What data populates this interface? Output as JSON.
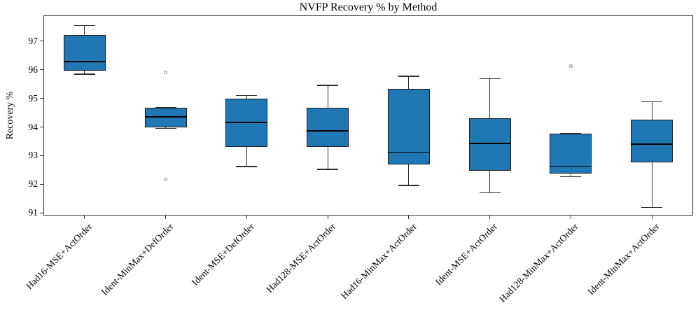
{
  "figure": {
    "background": "#ffffff"
  },
  "chart_data": {
    "type": "boxplot",
    "title": "NVFP Recovery % by Method",
    "ylabel": "Recovery %",
    "xlabel": "",
    "ylim": [
      90.93,
      97.88
    ],
    "yticks": [
      91,
      92,
      93,
      94,
      95,
      96,
      97
    ],
    "grid": false,
    "legend": null,
    "categories": [
      "Had16-MSE+ActOrder",
      "Ident-MinMax+DefOrder",
      "Ident-MSE+DefOrder",
      "Had128-MSE+ActOrder",
      "Had16-MinMax+ActOrder",
      "Ident-MSE+ActOrder",
      "Had128-MinMax+ActOrder",
      "Ident-MinMax+ActOrder"
    ],
    "series": [
      {
        "label": "Had16-MSE+ActOrder",
        "whislo": 95.85,
        "q1": 95.97,
        "med": 96.29,
        "q3": 97.23,
        "whishi": 97.55,
        "fliers": []
      },
      {
        "label": "Ident-MinMax+DefOrder",
        "whislo": 93.95,
        "q1": 93.98,
        "med": 94.35,
        "q3": 94.67,
        "whishi": 94.67,
        "fliers": [
          95.9,
          92.17
        ]
      },
      {
        "label": "Ident-MSE+DefOrder",
        "whislo": 92.62,
        "q1": 93.3,
        "med": 94.16,
        "q3": 94.99,
        "whishi": 95.1,
        "fliers": []
      },
      {
        "label": "Had128-MSE+ActOrder",
        "whislo": 92.52,
        "q1": 93.31,
        "med": 93.86,
        "q3": 94.67,
        "whishi": 95.46,
        "fliers": []
      },
      {
        "label": "Had16-MinMax+ActOrder",
        "whislo": 91.96,
        "q1": 92.7,
        "med": 93.12,
        "q3": 95.34,
        "whishi": 95.78,
        "fliers": []
      },
      {
        "label": "Ident-MSE+ActOrder",
        "whislo": 91.7,
        "q1": 92.47,
        "med": 93.42,
        "q3": 94.3,
        "whishi": 95.69,
        "fliers": []
      },
      {
        "label": "Had128-MinMax+ActOrder",
        "whislo": 92.26,
        "q1": 92.37,
        "med": 92.63,
        "q3": 93.77,
        "whishi": 93.77,
        "fliers": [
          96.13
        ]
      },
      {
        "label": "Ident-MinMax+ActOrder",
        "whislo": 91.19,
        "q1": 92.77,
        "med": 93.4,
        "q3": 94.27,
        "whishi": 94.88,
        "fliers": []
      }
    ],
    "colors": {
      "box_fill": "#1f77b4",
      "box_edge": "#1c1c1c",
      "median": "#000000",
      "whisker": "#2e2e2e",
      "flier_edge": "#808080",
      "spine": "#333333",
      "background": "#ffffff"
    }
  }
}
